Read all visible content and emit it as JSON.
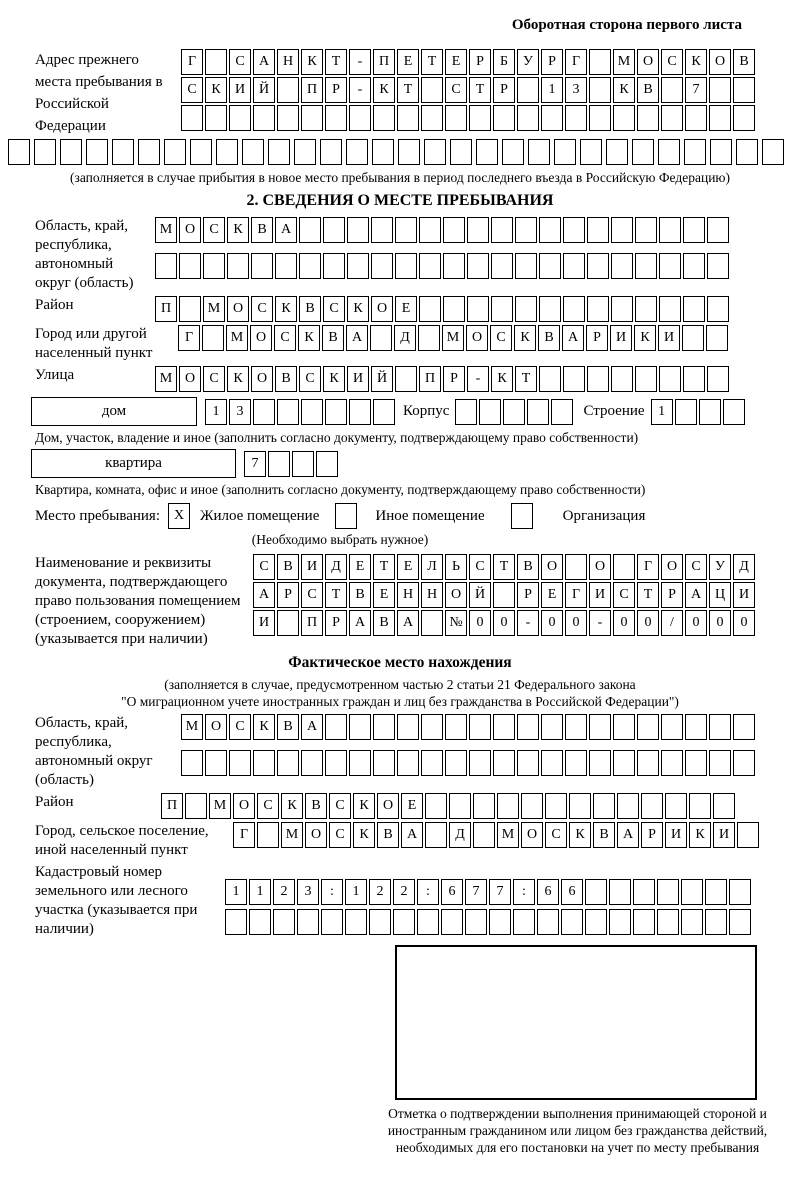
{
  "header": {
    "note": "Оборотная сторона первого листа"
  },
  "prev_address": {
    "label": "Адрес прежнего места пребывания в Российской Федерации",
    "line1": {
      "text": "Г САНКТ-ПЕТЕРБУРГ МОСКОВ",
      "len": 24
    },
    "line2": {
      "text": "СКИЙ ПР-КТ СТР 13 КВ 7",
      "len": 24
    },
    "line3": {
      "text": "",
      "len": 24
    },
    "line4": {
      "text": "",
      "len": 30
    },
    "note": "(заполняется в случае прибытия в новое место пребывания в период последнего въезда в Российскую Федерацию)"
  },
  "section2": {
    "title": "2. СВЕДЕНИЯ О МЕСТЕ ПРЕБЫВАНИЯ",
    "region_label": "Область, край, республика, автономный округ (область)",
    "region_line1": {
      "text": "МОСКВА",
      "len": 24
    },
    "region_line2": {
      "text": "",
      "len": 24
    },
    "district_label": "Район",
    "district_line": {
      "text": "П МОСКВСКОЕ",
      "len": 24
    },
    "city_label": "Город или другой населенный пункт",
    "city_line": {
      "text": "Г МОСКВА Д МОСКВАРИКИ",
      "len": 23
    },
    "street_label": "Улица",
    "street_line": {
      "text": "МОСКОВСКИЙ ПР-КТ",
      "len": 24
    },
    "house_type": "дом",
    "house_line": {
      "text": "13",
      "len": 8
    },
    "korpus_label": "Корпус",
    "korpus_line": {
      "text": "",
      "len": 5
    },
    "stroenie_label": "Строение",
    "stroenie_line": {
      "text": "1",
      "len": 4
    },
    "house_note": "Дом, участок, владение и иное (заполнить согласно документу, подтверждающему право собственности)",
    "apartment_type": "квартира",
    "apartment_line": {
      "text": "7",
      "len": 4
    },
    "apartment_note": "Квартира, комната, офис и иное (заполнить согласно документу, подтверждающему право собственности)",
    "stay_label": "Место пребывания:",
    "stay_check1": "X",
    "stay_opt1": "Жилое помещение",
    "stay_check2": "",
    "stay_opt2": "Иное помещение",
    "stay_check3": "",
    "stay_opt3": "Организация",
    "stay_note": "(Необходимо выбрать нужное)",
    "doc_label": "Наименование и реквизиты документа, подтверждающего право пользования помещением (строением, сооружением) (указывается при наличии)",
    "doc_line1": {
      "text": "СВИДЕТЕЛЬСТВО О ГОСУД",
      "len": 21
    },
    "doc_line2": {
      "text": "АРСТВЕННОЙ РЕГИСТРАЦИ",
      "len": 21
    },
    "doc_line3": {
      "text": "И ПРАВА №00-00-00/000",
      "len": 21
    }
  },
  "factual": {
    "title": "Фактическое место нахождения",
    "note1": "(заполняется в случае, предусмотренном частью 2 статьи 21 Федерального закона",
    "note2": "\"О миграционном учете иностранных граждан и лиц без гражданства в Российской Федерации\")",
    "region_label": "Область, край, республика, автономный округ (область)",
    "region_line1": {
      "text": "МОСКВА",
      "len": 24
    },
    "region_line2": {
      "text": "",
      "len": 24
    },
    "district_label": "Район",
    "district_line": {
      "text": "П МОСКВСКОЕ",
      "len": 24
    },
    "city_label": "Город, сельское поселение, иной населенный пункт",
    "city_line": {
      "text": "Г МОСКВА Д МОСКВАРИКИ",
      "len": 22
    },
    "cadastre_label": "Кадастровый номер земельного или лесного участка (указывается при наличии)",
    "cadastre_line1": {
      "text": "1123:122:677:66",
      "len": 22
    },
    "cadastre_line2": {
      "text": "",
      "len": 22
    }
  },
  "stamp": {
    "note": "Отметка о подтверждении выполнения принимающей стороной и иностранным гражданином или лицом без гражданства действий, необходимых для его постановки на учет по месту пребывания"
  }
}
